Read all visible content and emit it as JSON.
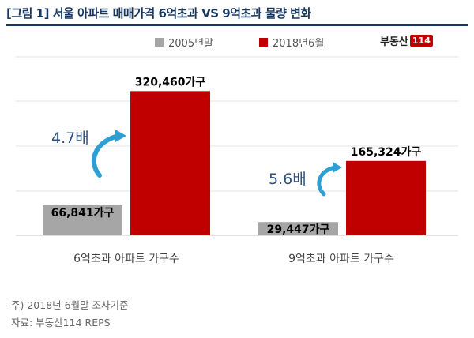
{
  "title": "[그림 1] 서울 아파트 매매가격 6억초과 VS 9억초과 물량 변화",
  "logo": {
    "text": "부동산",
    "number": "114"
  },
  "footnotes": [
    "주) 2018년 6월말 조사기준",
    "자료: 부동산114 REPS"
  ],
  "colors": {
    "title": "#17375e",
    "series_2005": "#a6a6a6",
    "series_2018": "#c00000",
    "arrow": "#2e9fd4"
  },
  "chart_data": {
    "type": "bar",
    "categories": [
      "6억초과 아파트 가구수",
      "9억초과 아파트 가구수"
    ],
    "series": [
      {
        "name": "2005년말",
        "values": [
          66841,
          29447
        ],
        "labels": [
          "66,841가구",
          "29,447가구"
        ],
        "color": "#a6a6a6"
      },
      {
        "name": "2018년6월",
        "values": [
          320460,
          165324
        ],
        "labels": [
          "320,460가구",
          "165,324가구"
        ],
        "color": "#c00000"
      }
    ],
    "annotations": [
      "4.7배",
      "5.6배"
    ],
    "ylim": [
      0,
      400000
    ],
    "grid": true,
    "legend": "top-center"
  }
}
